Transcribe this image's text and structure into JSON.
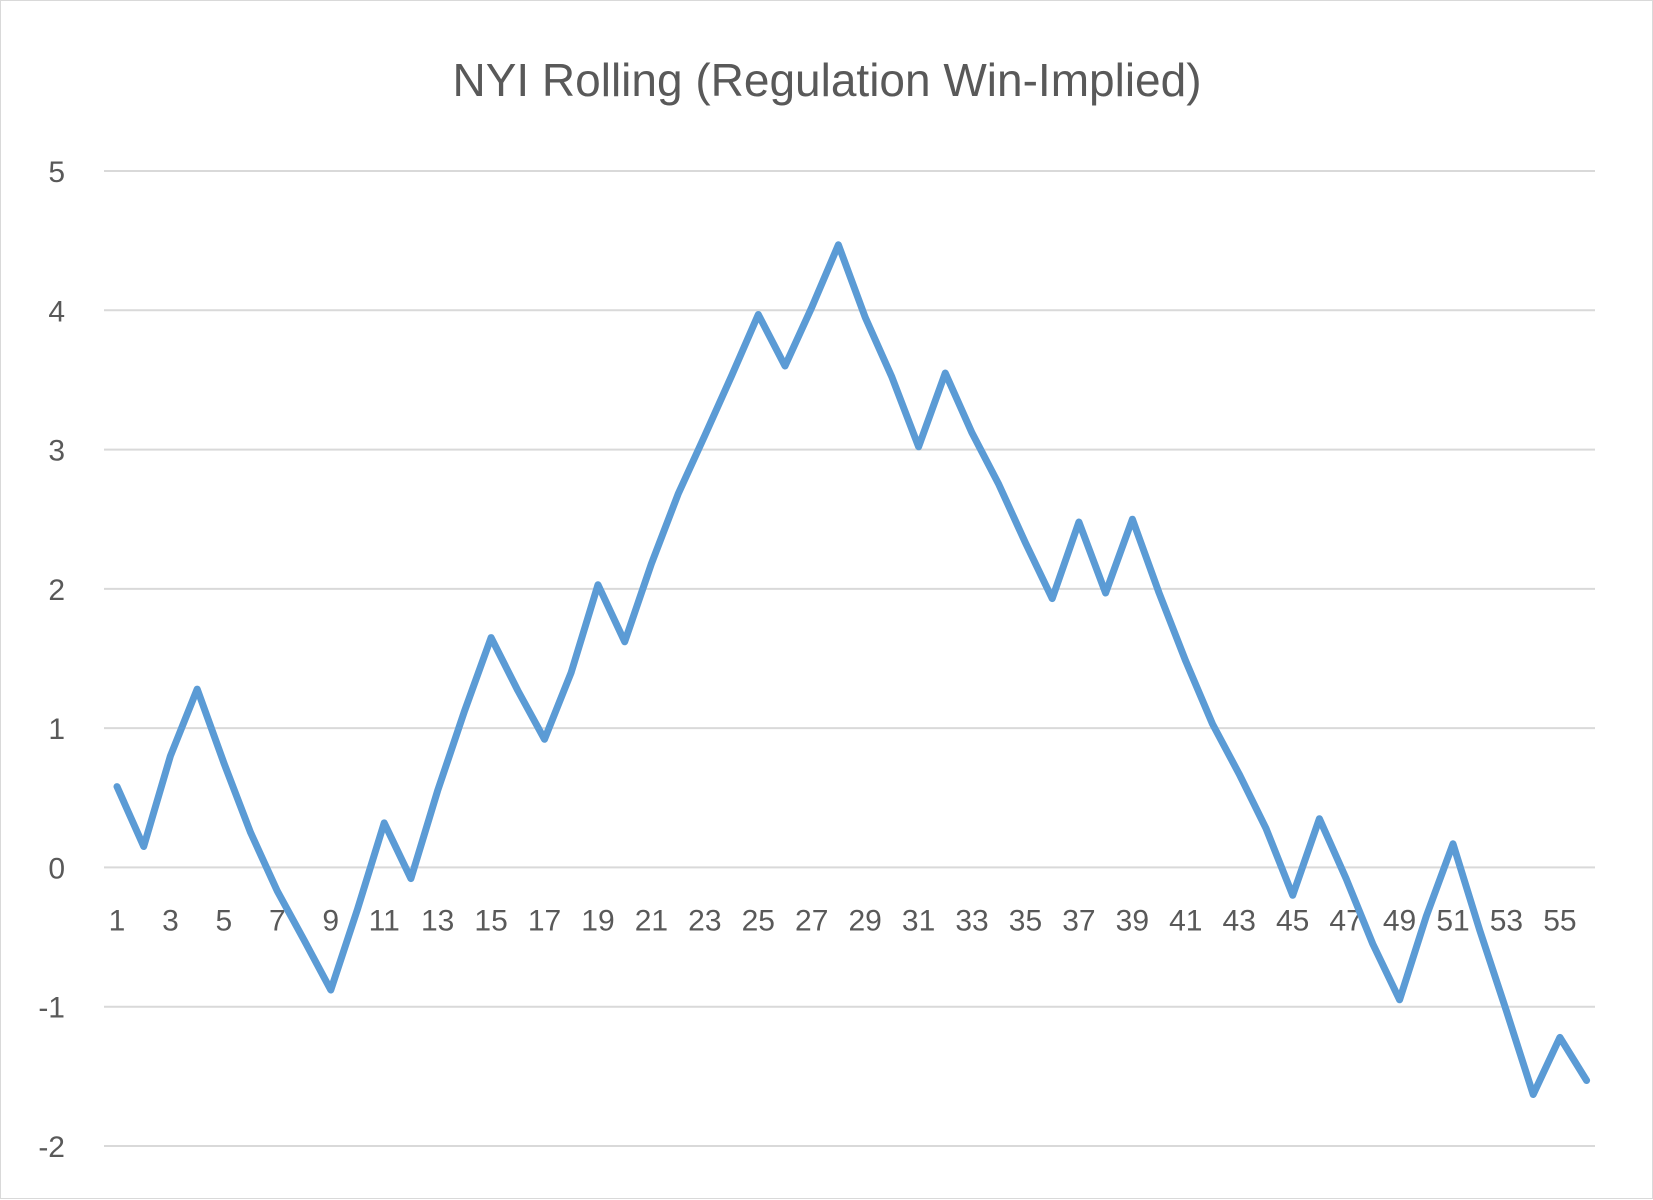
{
  "chart_data": {
    "type": "line",
    "title": "NYI Rolling (Regulation Win-Implied)",
    "xlabel": "",
    "ylabel": "",
    "ylim": [
      -2,
      5
    ],
    "yticks": [
      "5",
      "4",
      "3",
      "2",
      "1",
      "0",
      "-1",
      "-2"
    ],
    "xticks": [
      "1",
      "3",
      "5",
      "7",
      "9",
      "11",
      "13",
      "15",
      "17",
      "19",
      "21",
      "23",
      "25",
      "27",
      "29",
      "31",
      "33",
      "35",
      "37",
      "39",
      "41",
      "43",
      "45",
      "47",
      "49",
      "51",
      "53",
      "55"
    ],
    "grid": true,
    "legend": "none",
    "x": [
      1,
      2,
      3,
      4,
      5,
      6,
      7,
      8,
      9,
      10,
      11,
      12,
      13,
      14,
      15,
      16,
      17,
      18,
      19,
      20,
      21,
      22,
      23,
      24,
      25,
      26,
      27,
      28,
      29,
      30,
      31,
      32,
      33,
      34,
      35,
      36,
      37,
      38,
      39,
      40,
      41,
      42,
      43,
      44,
      45,
      46,
      47,
      48,
      49,
      50,
      51,
      52,
      53,
      54,
      55,
      56
    ],
    "series": [
      {
        "color": "#5b9bd5",
        "values": [
          0.58,
          0.15,
          0.8,
          1.28,
          0.75,
          0.25,
          -0.17,
          -0.52,
          -0.88,
          -0.3,
          0.32,
          -0.08,
          0.55,
          1.12,
          1.65,
          1.27,
          0.92,
          1.4,
          2.03,
          1.62,
          2.18,
          2.68,
          3.1,
          3.53,
          3.97,
          3.6,
          4.02,
          4.47,
          3.95,
          3.52,
          3.02,
          3.55,
          3.12,
          2.75,
          2.33,
          1.93,
          2.48,
          1.97,
          2.5,
          1.97,
          1.48,
          1.03,
          0.67,
          0.28,
          -0.2,
          0.35,
          -0.08,
          -0.55,
          -0.95,
          -0.35,
          0.17,
          -0.45,
          -1.03,
          -1.63,
          -1.22,
          -1.53
        ]
      }
    ]
  }
}
